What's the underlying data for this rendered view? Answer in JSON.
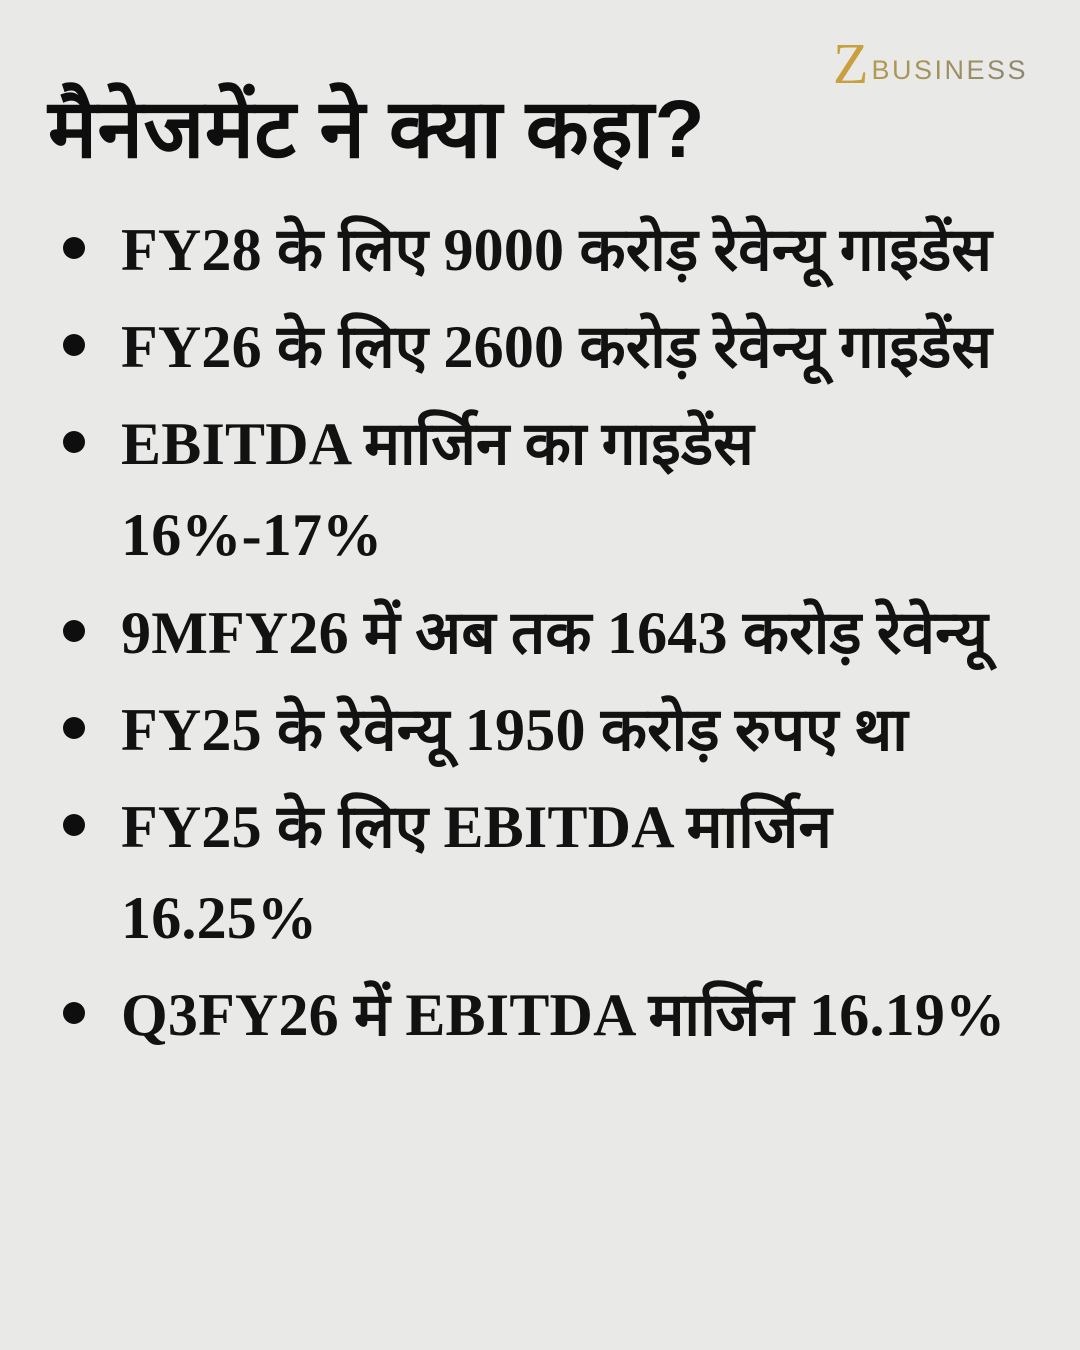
{
  "page": {
    "background_color": "#e9e9e7",
    "text_color": "#121212"
  },
  "logo": {
    "mark": "Z",
    "wordmark": "BUSINESS",
    "mark_color": "#c8a03e",
    "wordmark_color": "#958a68"
  },
  "title": "मैनेजमेंट ने क्या कहा?",
  "bullets": [
    "FY28 के लिए 9000 करोड़ रेवेन्यू गाइडेंस",
    "FY26 के लिए 2600 करोड़ रेवेन्यू गाइडेंस",
    "EBITDA मार्जिन का गाइडेंस 16%-17%",
    "9MFY26 में अब तक 1643 करोड़ रेवेन्यू",
    "FY25 के रेवेन्यू 1950 करोड़ रुपए था",
    "FY25 के लिए EBITDA मार्जिन 16.25%",
    "Q3FY26 में EBITDA मार्जिन 16.19%"
  ]
}
